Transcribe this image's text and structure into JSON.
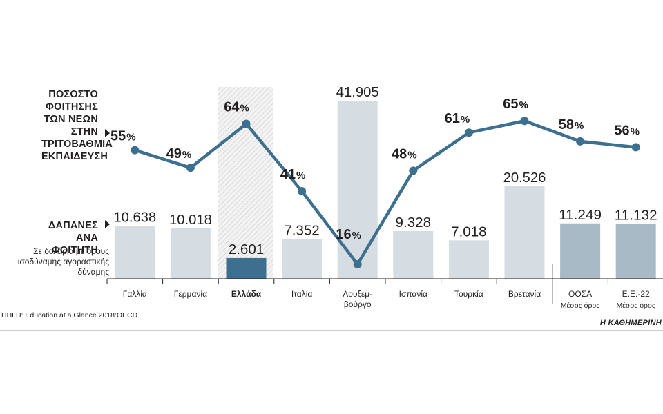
{
  "labels": {
    "pct_title": [
      "ΠΟΣΟΣΤΟ",
      "ΦΟΙΤΗΣΗΣ",
      "ΤΩΝ ΝΕΩΝ ΣΤΗΝ",
      "ΤΡΙΤΟΒΑΘΜΙΑ",
      "ΕΚΠΑΙΔΕΥΣΗ"
    ],
    "spend_title": [
      "ΔΑΠΑΝΕΣ",
      "ΑΝΑ ΦΟΙΤΗΤΗ"
    ],
    "spend_sub": [
      "Σε δολάρια με όρους",
      "ισοδύναμης αγοραστικής",
      "δύναμης"
    ]
  },
  "source": "ΠΗΓΗ: Education at a Glance 2018:OECD",
  "brand": "Η ΚΑΘΗΜΕΡΙΝΗ",
  "colors": {
    "bar": "#d5dde3",
    "bar_avg": "#a8bac6",
    "bar_highlight": "#3d6f8e",
    "line": "#3d6f8e",
    "text": "#231f20",
    "hatch": "#d9d9d9"
  },
  "chart_data": {
    "type": "bar+line",
    "categories": [
      {
        "name": "Γαλλία",
        "sub": ""
      },
      {
        "name": "Γερμανία",
        "sub": ""
      },
      {
        "name": "Ελλάδα",
        "sub": "",
        "highlight": true
      },
      {
        "name": "Ιταλία",
        "sub": ""
      },
      {
        "name": "Λουξεμ-",
        "sub": "βούργο"
      },
      {
        "name": "Ισπανία",
        "sub": ""
      },
      {
        "name": "Τουρκία",
        "sub": ""
      },
      {
        "name": "Βρετανία",
        "sub": ""
      },
      {
        "name": "ΟΟΣΑ",
        "sub": "Μέσος όρος",
        "average": true
      },
      {
        "name": "Ε.Ε.-22",
        "sub": "Μέσος όρος",
        "average": true
      }
    ],
    "series": [
      {
        "name": "Δαπάνες ανά φοιτητή",
        "kind": "bar",
        "values": [
          10638,
          10018,
          2601,
          7352,
          41905,
          9328,
          7018,
          20526,
          11249,
          11132
        ],
        "value_labels": [
          "10.638",
          "10.018",
          "2.601",
          "7.352",
          "41.905",
          "9.328",
          "7.018",
          "20.526",
          "11.249",
          "11.132"
        ]
      },
      {
        "name": "Ποσοστό φοίτησης των νέων στην τριτοβάθμια εκπαίδευση",
        "kind": "line",
        "values": [
          55,
          49,
          64,
          41,
          16,
          48,
          61,
          65,
          58,
          56
        ],
        "value_labels": [
          "55",
          "49",
          "64",
          "41",
          "16",
          "48",
          "61",
          "65",
          "58",
          "56"
        ],
        "unit": "%"
      }
    ]
  }
}
